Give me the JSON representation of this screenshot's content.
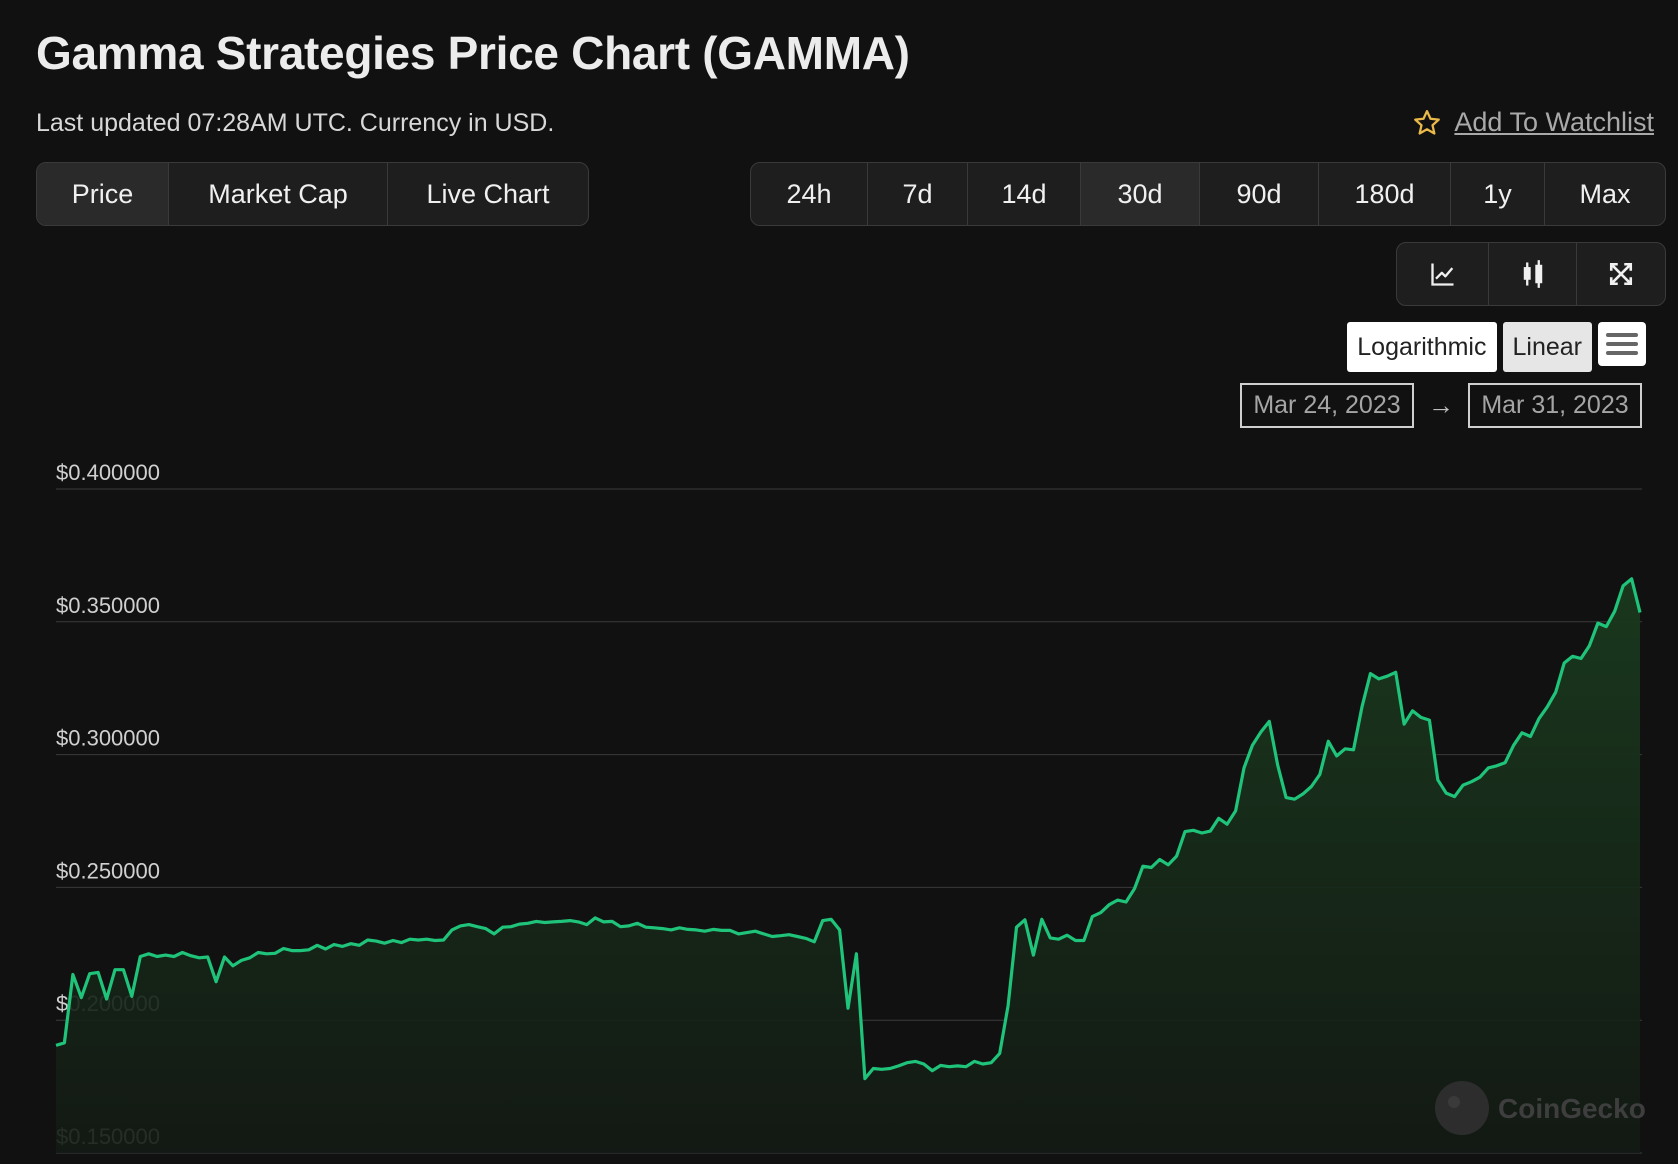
{
  "header": {
    "title": "Gamma Strategies Price Chart (GAMMA)",
    "subtitle": "Last updated 07:28AM UTC. Currency in USD.",
    "watchlist_label": "Add To Watchlist"
  },
  "type_tabs": [
    {
      "label": "Price",
      "active": true
    },
    {
      "label": "Market Cap",
      "active": false
    },
    {
      "label": "Live Chart",
      "active": false
    }
  ],
  "range_tabs": [
    {
      "label": "24h",
      "active": false
    },
    {
      "label": "7d",
      "active": false
    },
    {
      "label": "14d",
      "active": false
    },
    {
      "label": "30d",
      "active": true
    },
    {
      "label": "90d",
      "active": false
    },
    {
      "label": "180d",
      "active": false
    },
    {
      "label": "1y",
      "active": false
    },
    {
      "label": "Max",
      "active": false
    }
  ],
  "tools": {
    "icons": [
      "line-chart-icon",
      "candlestick-icon",
      "fullscreen-icon"
    ]
  },
  "scale": {
    "logarithmic_label": "Logarithmic",
    "linear_label": "Linear",
    "active": "Linear"
  },
  "date_range": {
    "from": "Mar 24, 2023",
    "to": "Mar 31, 2023"
  },
  "watermark": "CoinGecko",
  "colors": {
    "line": "#1fc47a",
    "background": "#111111",
    "star": "#e9b949"
  },
  "chart_data": {
    "type": "area",
    "title": "",
    "xlabel": "",
    "ylabel": "",
    "ylim": [
      0.15,
      0.4
    ],
    "yticks": [
      0.15,
      0.2,
      0.25,
      0.3,
      0.35,
      0.4
    ],
    "ytick_labels": [
      "$0.150000",
      "$0.200000",
      "$0.250000",
      "$0.300000",
      "$0.350000",
      "$0.400000"
    ],
    "x_start": "Mar 24, 2023",
    "x_end": "Mar 31, 2023",
    "grid": true,
    "series": [
      {
        "values": [
          0.1905,
          0.1915,
          0.2172,
          0.2085,
          0.2175,
          0.218,
          0.208,
          0.219,
          0.219,
          0.209,
          0.224,
          0.225,
          0.224,
          0.2245,
          0.224,
          0.2255,
          0.2243,
          0.2235,
          0.2238,
          0.2145,
          0.2238,
          0.2205,
          0.2225,
          0.2235,
          0.2255,
          0.225,
          0.2252,
          0.227,
          0.2262,
          0.2262,
          0.2265,
          0.2282,
          0.2268,
          0.2285,
          0.2278,
          0.2288,
          0.2282,
          0.2302,
          0.2298,
          0.229,
          0.23,
          0.2292,
          0.2305,
          0.2302,
          0.2305,
          0.23,
          0.2302,
          0.234,
          0.2355,
          0.236,
          0.2352,
          0.2345,
          0.2325,
          0.235,
          0.2352,
          0.2362,
          0.2365,
          0.2372,
          0.2368,
          0.237,
          0.2372,
          0.2375,
          0.237,
          0.236,
          0.2385,
          0.237,
          0.2372,
          0.2352,
          0.2355,
          0.2365,
          0.235,
          0.2348,
          0.2345,
          0.234,
          0.2348,
          0.2342,
          0.234,
          0.2335,
          0.2342,
          0.2338,
          0.2338,
          0.2325,
          0.233,
          0.2335,
          0.2325,
          0.2315,
          0.2318,
          0.2322,
          0.2315,
          0.2308,
          0.2295,
          0.2375,
          0.238,
          0.234,
          0.2045,
          0.225,
          0.178,
          0.1818,
          0.1815,
          0.1818,
          0.1828,
          0.184,
          0.1845,
          0.1835,
          0.181,
          0.183,
          0.1825,
          0.1828,
          0.1825,
          0.1845,
          0.1835,
          0.184,
          0.1875,
          0.2055,
          0.235,
          0.2378,
          0.2245,
          0.238,
          0.231,
          0.2305,
          0.232,
          0.23,
          0.23,
          0.239,
          0.2405,
          0.2435,
          0.2452,
          0.2445,
          0.2495,
          0.258,
          0.2575,
          0.2605,
          0.2585,
          0.2618,
          0.271,
          0.2715,
          0.2705,
          0.2712,
          0.276,
          0.2738,
          0.2788,
          0.295,
          0.3035,
          0.3085,
          0.3125,
          0.296,
          0.2838,
          0.2832,
          0.2852,
          0.288,
          0.2925,
          0.305,
          0.2995,
          0.3022,
          0.3018,
          0.318,
          0.3305,
          0.3285,
          0.3295,
          0.331,
          0.3115,
          0.3165,
          0.314,
          0.313,
          0.2905,
          0.2855,
          0.2842,
          0.2885,
          0.2898,
          0.2915,
          0.295,
          0.2958,
          0.297,
          0.3035,
          0.3082,
          0.3068,
          0.3135,
          0.318,
          0.3235,
          0.3345,
          0.337,
          0.3362,
          0.341,
          0.3495,
          0.3482,
          0.354,
          0.3635,
          0.3662,
          0.3535
        ]
      }
    ]
  }
}
